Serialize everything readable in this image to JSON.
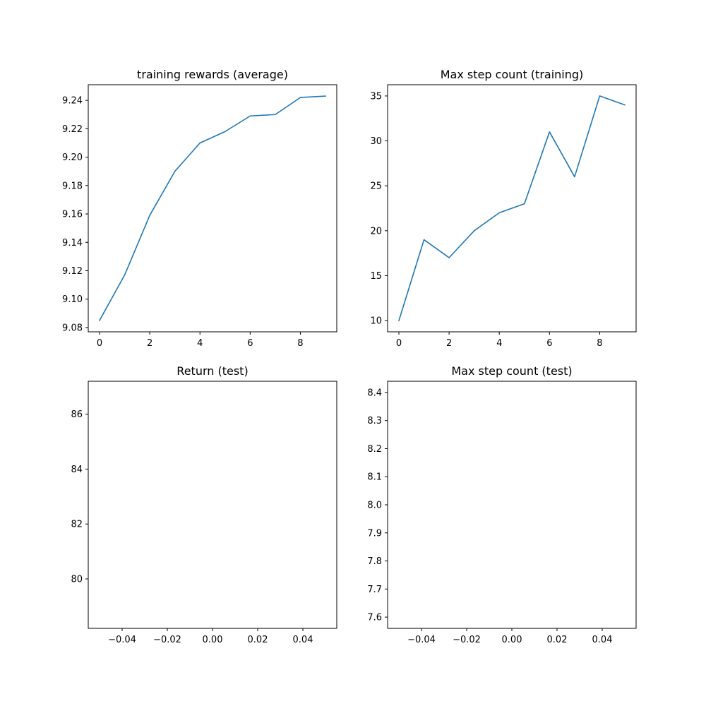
{
  "chart_data": [
    {
      "type": "line",
      "title": "training rewards (average)",
      "x": [
        0,
        1,
        2,
        3,
        4,
        5,
        6,
        7,
        8,
        9
      ],
      "series": [
        {
          "values": [
            9.085,
            9.117,
            9.159,
            9.19,
            9.21,
            9.218,
            9.229,
            9.23,
            9.242,
            9.243
          ]
        }
      ],
      "xlim": [
        -0.45,
        9.45
      ],
      "ylim": [
        9.077,
        9.251
      ],
      "xticks": [
        0,
        2,
        4,
        6,
        8
      ],
      "xtick_labels": [
        "0",
        "2",
        "4",
        "6",
        "8"
      ],
      "yticks": [
        9.08,
        9.1,
        9.12,
        9.14,
        9.16,
        9.18,
        9.2,
        9.22,
        9.24
      ],
      "ytick_labels": [
        "9.08",
        "9.10",
        "9.12",
        "9.14",
        "9.16",
        "9.18",
        "9.20",
        "9.22",
        "9.24"
      ],
      "line_color": "#1f77b4",
      "grid": false
    },
    {
      "type": "line",
      "title": "Max step count (training)",
      "x": [
        0,
        1,
        2,
        3,
        4,
        5,
        6,
        7,
        8,
        9
      ],
      "series": [
        {
          "values": [
            10,
            19,
            17,
            20,
            22,
            23,
            31,
            26,
            35,
            34
          ]
        }
      ],
      "xlim": [
        -0.45,
        9.45
      ],
      "ylim": [
        8.75,
        36.25
      ],
      "xticks": [
        0,
        2,
        4,
        6,
        8
      ],
      "xtick_labels": [
        "0",
        "2",
        "4",
        "6",
        "8"
      ],
      "yticks": [
        10,
        15,
        20,
        25,
        30,
        35
      ],
      "ytick_labels": [
        "10",
        "15",
        "20",
        "25",
        "30",
        "35"
      ],
      "line_color": "#1f77b4",
      "grid": false
    },
    {
      "type": "line",
      "title": "Return (test)",
      "x": [],
      "series": [],
      "xlim": [
        -0.055,
        0.055
      ],
      "ylim": [
        78.2,
        87.2
      ],
      "xticks": [
        -0.04,
        -0.02,
        0.0,
        0.02,
        0.04
      ],
      "xtick_labels": [
        "−0.04",
        "−0.02",
        "0.00",
        "0.02",
        "0.04"
      ],
      "yticks": [
        80,
        82,
        84,
        86
      ],
      "ytick_labels": [
        "80",
        "82",
        "84",
        "86"
      ],
      "line_color": "#1f77b4",
      "grid": false
    },
    {
      "type": "line",
      "title": "Max step count (test)",
      "x": [],
      "series": [],
      "xlim": [
        -0.055,
        0.055
      ],
      "ylim": [
        7.56,
        8.44
      ],
      "xticks": [
        -0.04,
        -0.02,
        0.0,
        0.02,
        0.04
      ],
      "xtick_labels": [
        "−0.04",
        "−0.02",
        "0.00",
        "0.02",
        "0.04"
      ],
      "yticks": [
        7.6,
        7.7,
        7.8,
        7.9,
        8.0,
        8.1,
        8.2,
        8.3,
        8.4
      ],
      "ytick_labels": [
        "7.6",
        "7.7",
        "7.8",
        "7.9",
        "8.0",
        "8.1",
        "8.2",
        "8.3",
        "8.4"
      ],
      "line_color": "#1f77b4",
      "grid": false
    }
  ]
}
